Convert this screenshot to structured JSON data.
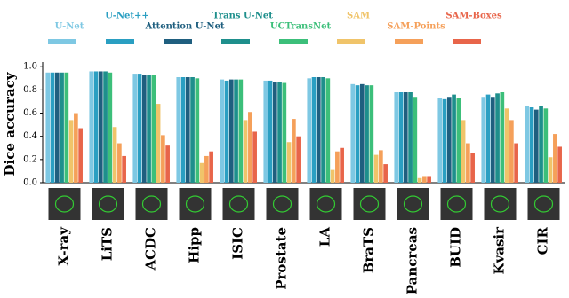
{
  "chart_data": {
    "type": "bar",
    "y_label": "Dice accuracy",
    "categories": [
      "X-ray",
      "LiTS",
      "ACDC",
      "Hipp",
      "ISIC",
      "Prostate",
      "LA",
      "BraTS",
      "Pancreas",
      "BUID",
      "Kvasir",
      "CIR"
    ],
    "series": [
      {
        "name": "U-Net",
        "color": "#7ec8e3",
        "values": [
          0.95,
          0.96,
          0.94,
          0.91,
          0.89,
          0.88,
          0.9,
          0.85,
          0.78,
          0.73,
          0.74,
          0.66
        ]
      },
      {
        "name": "U-Net++",
        "color": "#2a9fc2",
        "values": [
          0.95,
          0.96,
          0.94,
          0.91,
          0.88,
          0.88,
          0.91,
          0.84,
          0.78,
          0.72,
          0.76,
          0.65
        ]
      },
      {
        "name": "Attention U-Net",
        "color": "#1f5f7f",
        "values": [
          0.95,
          0.96,
          0.93,
          0.91,
          0.89,
          0.87,
          0.91,
          0.85,
          0.78,
          0.74,
          0.74,
          0.63
        ]
      },
      {
        "name": "Trans U-Net",
        "color": "#1e8f8c",
        "values": [
          0.95,
          0.96,
          0.93,
          0.91,
          0.89,
          0.87,
          0.91,
          0.84,
          0.78,
          0.76,
          0.77,
          0.66
        ]
      },
      {
        "name": "UCTransNet",
        "color": "#3cbf7a",
        "values": [
          0.95,
          0.95,
          0.93,
          0.9,
          0.89,
          0.86,
          0.9,
          0.84,
          0.74,
          0.73,
          0.78,
          0.64
        ]
      },
      {
        "name": "SAM",
        "color": "#f0c46a",
        "values": [
          0.54,
          0.48,
          0.68,
          0.17,
          0.54,
          0.35,
          0.11,
          0.24,
          0.04,
          0.54,
          0.64,
          0.22
        ]
      },
      {
        "name": "SAM-Points",
        "color": "#f5a05a",
        "values": [
          0.6,
          0.34,
          0.41,
          0.23,
          0.61,
          0.55,
          0.27,
          0.28,
          0.05,
          0.34,
          0.54,
          0.42
        ]
      },
      {
        "name": "SAM-Boxes",
        "color": "#e8654a",
        "values": [
          0.47,
          0.23,
          0.32,
          0.27,
          0.44,
          0.4,
          0.3,
          0.16,
          0.05,
          0.26,
          0.34,
          0.31
        ]
      }
    ],
    "ylim": [
      0,
      1.04
    ],
    "yticks": [
      {
        "value": 0,
        "label": "0.0"
      },
      0.2,
      0.4,
      0.6,
      0.8,
      {
        "value": 1,
        "label": "1.0"
      }
    ],
    "grid": false
  }
}
